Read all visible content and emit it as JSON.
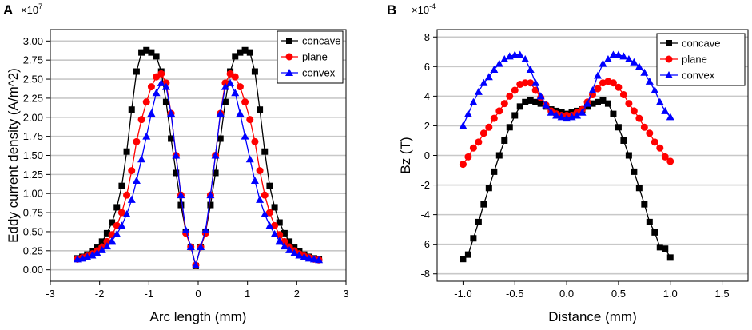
{
  "colors": {
    "concave": "#000000",
    "plane": "#ff0000",
    "convex": "#0000ff",
    "grid": "#c8c8c8"
  },
  "chart_data": [
    {
      "panel": "A",
      "type": "line",
      "multiplier_base": "×10",
      "multiplier_exp": "7",
      "xlabel": "Arc length (mm)",
      "ylabel": "Eddy current density (A/m^2)",
      "xlim": [
        -3,
        3
      ],
      "ylim": [
        -0.15,
        3.15
      ],
      "xticks": [
        -3,
        -2,
        -1,
        0,
        1,
        2,
        3
      ],
      "xtick_labels": [
        "-3",
        "-2",
        "-1",
        "0",
        "1",
        "2",
        "3"
      ],
      "yticks": [
        0,
        0.25,
        0.5,
        0.75,
        1.0,
        1.25,
        1.5,
        1.75,
        2.0,
        2.25,
        2.5,
        2.75,
        3.0
      ],
      "ytick_labels": [
        "0.00",
        "0.25",
        "0.50",
        "0.75",
        "1.00",
        "1.25",
        "1.50",
        "1.75",
        "2.00",
        "2.25",
        "2.50",
        "2.75",
        "3.00"
      ],
      "grid": "horizontal",
      "legend_position": "top-right",
      "series": [
        {
          "name": "concave",
          "marker": "square",
          "x": [
            -2.45,
            -2.35,
            -2.25,
            -2.15,
            -2.05,
            -1.95,
            -1.85,
            -1.75,
            -1.65,
            -1.55,
            -1.45,
            -1.35,
            -1.25,
            -1.15,
            -1.05,
            -0.95,
            -0.85,
            -0.75,
            -0.65,
            -0.55,
            -0.45,
            -0.35,
            -0.25,
            -0.15,
            -0.05,
            0.05,
            0.15,
            0.25,
            0.35,
            0.45,
            0.55,
            0.65,
            0.75,
            0.85,
            0.95,
            1.05,
            1.15,
            1.25,
            1.35,
            1.45,
            1.55,
            1.65,
            1.75,
            1.85,
            1.95,
            2.05,
            2.15,
            2.25,
            2.35,
            2.45
          ],
          "y": [
            0.15,
            0.17,
            0.2,
            0.24,
            0.3,
            0.37,
            0.48,
            0.62,
            0.82,
            1.1,
            1.55,
            2.1,
            2.6,
            2.85,
            2.88,
            2.85,
            2.8,
            2.6,
            2.2,
            1.72,
            1.27,
            0.85,
            0.5,
            0.3,
            0.05,
            0.3,
            0.5,
            0.85,
            1.27,
            1.72,
            2.2,
            2.6,
            2.8,
            2.85,
            2.88,
            2.85,
            2.6,
            2.1,
            1.55,
            1.1,
            0.82,
            0.62,
            0.48,
            0.37,
            0.3,
            0.24,
            0.2,
            0.17,
            0.15,
            0.14
          ]
        },
        {
          "name": "plane",
          "marker": "circle",
          "x": [
            -2.45,
            -2.35,
            -2.25,
            -2.15,
            -2.05,
            -1.95,
            -1.85,
            -1.75,
            -1.65,
            -1.55,
            -1.45,
            -1.35,
            -1.25,
            -1.15,
            -1.05,
            -0.95,
            -0.85,
            -0.75,
            -0.65,
            -0.55,
            -0.45,
            -0.35,
            -0.25,
            -0.15,
            -0.05,
            0.05,
            0.15,
            0.25,
            0.35,
            0.45,
            0.55,
            0.65,
            0.75,
            0.85,
            0.95,
            1.05,
            1.15,
            1.25,
            1.35,
            1.45,
            1.55,
            1.65,
            1.75,
            1.85,
            1.95,
            2.05,
            2.15,
            2.25,
            2.35,
            2.45
          ],
          "y": [
            0.14,
            0.16,
            0.18,
            0.21,
            0.25,
            0.3,
            0.37,
            0.46,
            0.58,
            0.75,
            0.98,
            1.3,
            1.68,
            1.97,
            2.2,
            2.4,
            2.53,
            2.57,
            2.45,
            2.05,
            1.5,
            0.98,
            0.48,
            0.3,
            0.06,
            0.3,
            0.48,
            0.98,
            1.5,
            2.05,
            2.45,
            2.57,
            2.53,
            2.4,
            2.2,
            1.97,
            1.68,
            1.3,
            0.98,
            0.75,
            0.58,
            0.46,
            0.37,
            0.3,
            0.25,
            0.21,
            0.18,
            0.16,
            0.14,
            0.13
          ]
        },
        {
          "name": "convex",
          "marker": "triangle",
          "x": [
            -2.45,
            -2.35,
            -2.25,
            -2.15,
            -2.05,
            -1.95,
            -1.85,
            -1.75,
            -1.65,
            -1.55,
            -1.45,
            -1.35,
            -1.25,
            -1.15,
            -1.05,
            -0.95,
            -0.85,
            -0.75,
            -0.65,
            -0.55,
            -0.45,
            -0.35,
            -0.25,
            -0.15,
            -0.05,
            0.05,
            0.15,
            0.25,
            0.35,
            0.45,
            0.55,
            0.65,
            0.75,
            0.85,
            0.95,
            1.05,
            1.15,
            1.25,
            1.35,
            1.45,
            1.55,
            1.65,
            1.75,
            1.85,
            1.95,
            2.05,
            2.15,
            2.25,
            2.35,
            2.45
          ],
          "y": [
            0.14,
            0.15,
            0.17,
            0.19,
            0.22,
            0.26,
            0.31,
            0.38,
            0.47,
            0.58,
            0.73,
            0.92,
            1.17,
            1.45,
            1.75,
            2.05,
            2.32,
            2.45,
            2.4,
            2.05,
            1.5,
            0.98,
            0.52,
            0.3,
            0.06,
            0.3,
            0.52,
            0.98,
            1.5,
            2.05,
            2.4,
            2.45,
            2.32,
            2.05,
            1.75,
            1.45,
            1.17,
            0.92,
            0.73,
            0.58,
            0.47,
            0.38,
            0.31,
            0.26,
            0.22,
            0.19,
            0.17,
            0.15,
            0.14,
            0.13
          ]
        }
      ]
    },
    {
      "panel": "B",
      "type": "line",
      "multiplier_base": "×10",
      "multiplier_exp": "-4",
      "xlabel": "Distance (mm)",
      "ylabel": "Bz (T)",
      "xlim": [
        -1.25,
        1.75
      ],
      "ylim": [
        -8.5,
        8.5
      ],
      "xticks": [
        -1.0,
        -0.5,
        0.0,
        0.5,
        1.0,
        1.5
      ],
      "xtick_labels": [
        "-1.0",
        "-0.5",
        "0.0",
        "0.5",
        "1.0",
        "1.5"
      ],
      "yticks": [
        -8,
        -6,
        -4,
        -2,
        0,
        2,
        4,
        6,
        8
      ],
      "ytick_labels": [
        "-8",
        "-6",
        "-4",
        "-2",
        "0",
        "2",
        "4",
        "6",
        "8"
      ],
      "grid": "horizontal",
      "legend_position": "top-right",
      "series": [
        {
          "name": "concave",
          "marker": "square",
          "x": [
            -1.0,
            -0.95,
            -0.9,
            -0.85,
            -0.8,
            -0.75,
            -0.7,
            -0.65,
            -0.6,
            -0.55,
            -0.5,
            -0.45,
            -0.4,
            -0.35,
            -0.3,
            -0.25,
            -0.2,
            -0.15,
            -0.1,
            -0.05,
            0.0,
            0.05,
            0.1,
            0.15,
            0.2,
            0.25,
            0.3,
            0.35,
            0.4,
            0.45,
            0.5,
            0.55,
            0.6,
            0.65,
            0.7,
            0.75,
            0.8,
            0.85,
            0.9,
            0.95,
            1.0
          ],
          "y": [
            -7.0,
            -6.7,
            -5.6,
            -4.5,
            -3.3,
            -2.2,
            -1.1,
            0.0,
            1.0,
            1.9,
            2.7,
            3.3,
            3.6,
            3.7,
            3.6,
            3.5,
            3.3,
            3.1,
            3.0,
            2.9,
            2.8,
            2.9,
            3.0,
            3.1,
            3.3,
            3.5,
            3.6,
            3.7,
            3.5,
            2.8,
            1.9,
            1.0,
            0.0,
            -1.1,
            -2.2,
            -3.3,
            -4.5,
            -5.2,
            -6.2,
            -6.3,
            -6.9
          ]
        },
        {
          "name": "plane",
          "marker": "circle",
          "x": [
            -1.0,
            -0.95,
            -0.9,
            -0.85,
            -0.8,
            -0.75,
            -0.7,
            -0.65,
            -0.6,
            -0.55,
            -0.5,
            -0.45,
            -0.4,
            -0.35,
            -0.3,
            -0.25,
            -0.2,
            -0.15,
            -0.1,
            -0.05,
            0.0,
            0.05,
            0.1,
            0.15,
            0.2,
            0.25,
            0.3,
            0.35,
            0.4,
            0.45,
            0.5,
            0.55,
            0.6,
            0.65,
            0.7,
            0.75,
            0.8,
            0.85,
            0.9,
            0.95,
            1.0
          ],
          "y": [
            -0.6,
            -0.1,
            0.5,
            0.9,
            1.5,
            1.9,
            2.5,
            3.0,
            3.5,
            4.0,
            4.4,
            4.8,
            4.9,
            4.9,
            4.4,
            3.9,
            3.4,
            3.0,
            2.8,
            2.7,
            2.7,
            2.7,
            2.9,
            3.1,
            3.6,
            4.1,
            4.5,
            4.9,
            5.0,
            4.9,
            4.6,
            4.1,
            3.5,
            3.0,
            2.5,
            1.9,
            1.5,
            0.9,
            0.5,
            -0.1,
            -0.4
          ]
        },
        {
          "name": "convex",
          "marker": "triangle",
          "x": [
            -1.0,
            -0.95,
            -0.9,
            -0.85,
            -0.8,
            -0.75,
            -0.7,
            -0.65,
            -0.6,
            -0.55,
            -0.5,
            -0.45,
            -0.4,
            -0.35,
            -0.3,
            -0.25,
            -0.2,
            -0.15,
            -0.1,
            -0.05,
            0.0,
            0.05,
            0.1,
            0.15,
            0.2,
            0.25,
            0.3,
            0.35,
            0.4,
            0.45,
            0.5,
            0.55,
            0.6,
            0.65,
            0.7,
            0.75,
            0.8,
            0.85,
            0.9,
            0.95,
            1.0
          ],
          "y": [
            2.0,
            2.8,
            3.6,
            4.3,
            4.9,
            5.3,
            5.8,
            6.2,
            6.5,
            6.7,
            6.8,
            6.8,
            6.5,
            5.8,
            4.9,
            4.0,
            3.4,
            2.9,
            2.7,
            2.6,
            2.5,
            2.6,
            2.7,
            2.9,
            3.5,
            4.4,
            5.4,
            6.2,
            6.5,
            6.8,
            6.8,
            6.7,
            6.5,
            6.3,
            6.0,
            5.6,
            5.0,
            4.4,
            3.6,
            3.0,
            2.6
          ]
        }
      ]
    }
  ]
}
